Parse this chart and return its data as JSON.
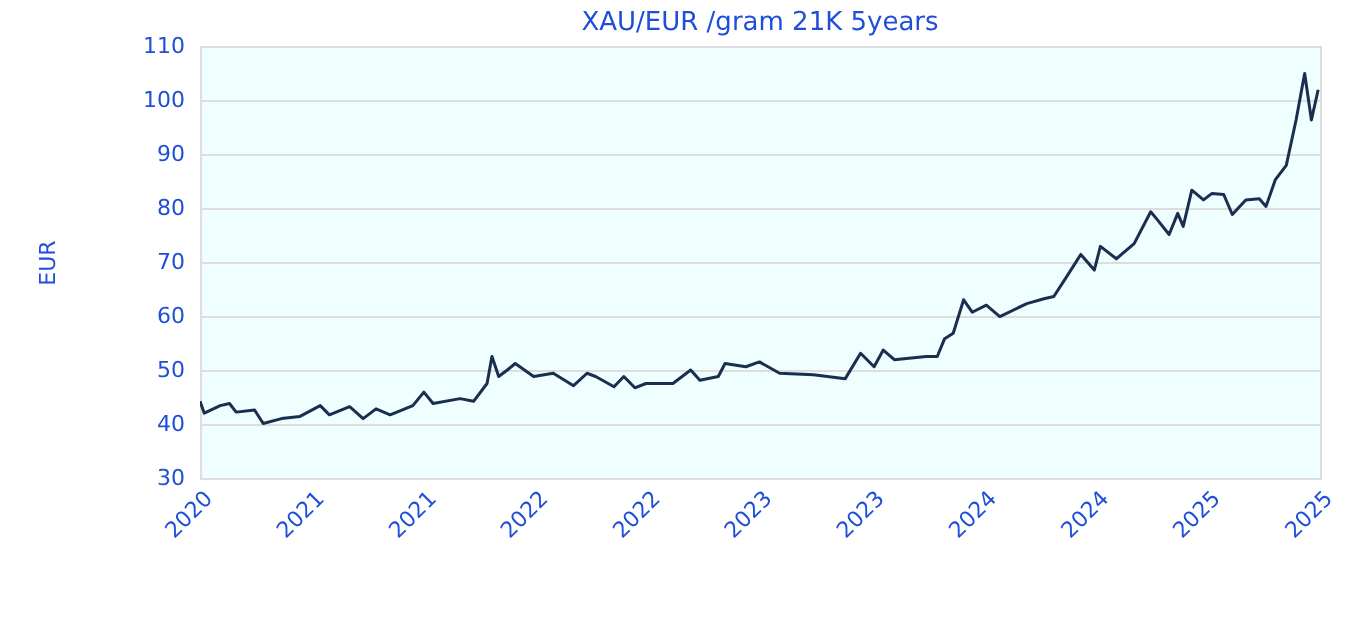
{
  "chart_data": {
    "type": "line",
    "title": "XAU/EUR /gram 21K 5years",
    "ylabel": "EUR",
    "x": [
      "2020-10-15",
      "2020-10-22",
      "2020-11-17",
      "2020-12-02",
      "2020-12-13",
      "2021-01-12",
      "2021-01-26",
      "2021-02-25",
      "2021-03-27",
      "2021-04-29",
      "2021-05-14",
      "2021-06-16",
      "2021-07-08",
      "2021-07-29",
      "2021-08-21",
      "2021-09-27",
      "2021-10-15",
      "2021-10-30",
      "2021-12-13",
      "2022-01-04",
      "2022-01-26",
      "2022-02-03",
      "2022-02-14",
      "2022-02-28",
      "2022-03-13",
      "2022-04-12",
      "2022-05-14",
      "2022-06-16",
      "2022-07-08",
      "2022-07-22",
      "2022-08-21",
      "2022-09-06",
      "2022-09-24",
      "2022-10-12",
      "2022-11-25",
      "2022-12-24",
      "2023-01-08",
      "2023-02-07",
      "2023-02-18",
      "2023-03-24",
      "2023-04-15",
      "2023-05-18",
      "2023-07-12",
      "2023-09-02",
      "2023-09-27",
      "2023-10-19",
      "2023-11-03",
      "2023-11-21",
      "2024-01-12",
      "2024-01-30",
      "2024-02-11",
      "2024-02-25",
      "2024-03-13",
      "2024-03-27",
      "2024-04-19",
      "2024-05-11",
      "2024-06-24",
      "2024-07-22",
      "2024-08-07",
      "2024-08-28",
      "2024-09-20",
      "2024-10-12",
      "2024-10-22",
      "2024-11-17",
      "2024-12-16",
      "2025-01-12",
      "2025-01-23",
      "2025-02-11",
      "2025-02-25",
      "2025-03-06",
      "2025-03-20",
      "2025-04-08",
      "2025-04-22",
      "2025-05-11",
      "2025-05-25",
      "2025-06-16",
      "2025-07-08",
      "2025-07-19",
      "2025-08-03",
      "2025-08-21",
      "2025-09-06",
      "2025-09-20",
      "2025-10-01",
      "2025-10-12"
    ],
    "series": [
      {
        "color": "#1a2e50",
        "values": [
          44.2,
          42.0,
          43.4,
          43.8,
          42.2,
          42.6,
          40.1,
          41.0,
          41.4,
          43.4,
          41.7,
          43.2,
          41.0,
          42.8,
          41.7,
          43.4,
          45.9,
          43.8,
          44.7,
          44.2,
          47.5,
          52.5,
          48.8,
          50.0,
          51.2,
          48.8,
          49.4,
          47.1,
          49.4,
          48.8,
          46.9,
          48.8,
          46.7,
          47.5,
          47.5,
          50.0,
          48.1,
          48.8,
          51.2,
          50.6,
          51.5,
          49.4,
          49.1,
          48.4,
          53.1,
          50.6,
          53.7,
          51.9,
          52.5,
          52.5,
          55.8,
          56.8,
          63.0,
          60.7,
          62.0,
          59.9,
          62.3,
          63.2,
          63.6,
          67.3,
          71.4,
          68.5,
          72.9,
          70.6,
          73.4,
          79.3,
          77.8,
          75.1,
          79.0,
          76.6,
          83.3,
          81.5,
          82.7,
          82.5,
          78.8,
          81.5,
          81.7,
          80.3,
          85.2,
          87.9,
          96.3,
          104.9,
          96.3,
          101.9
        ]
      }
    ],
    "xlim": [
      "2020-10-15",
      "2025-10-15"
    ],
    "xticks": [
      {
        "value": "2020-10-15",
        "label": "2020"
      },
      {
        "value": "2021-04-15",
        "label": "2021"
      },
      {
        "value": "2021-10-15",
        "label": "2021"
      },
      {
        "value": "2022-04-15",
        "label": "2022"
      },
      {
        "value": "2022-10-15",
        "label": "2022"
      },
      {
        "value": "2023-04-15",
        "label": "2023"
      },
      {
        "value": "2023-10-15",
        "label": "2023"
      },
      {
        "value": "2024-04-15",
        "label": "2024"
      },
      {
        "value": "2024-10-15",
        "label": "2024"
      },
      {
        "value": "2025-04-15",
        "label": "2025"
      },
      {
        "value": "2025-10-15",
        "label": "2025"
      }
    ],
    "ylim": [
      30,
      110
    ],
    "yticks": [
      30,
      40,
      50,
      60,
      70,
      80,
      90,
      100,
      110
    ],
    "grid": "y",
    "marker": "none",
    "line_style": "solid"
  }
}
